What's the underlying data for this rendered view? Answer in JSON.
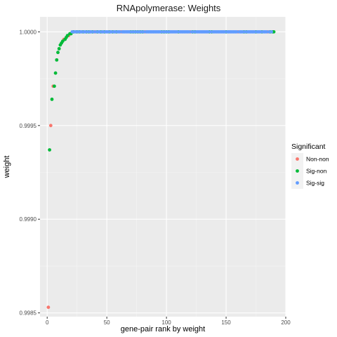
{
  "chart_data": {
    "type": "scatter",
    "title": "RNApolymerase: Weights",
    "xlabel": "gene-pair rank by weight",
    "ylabel": "weight",
    "xlim": [
      -6,
      200
    ],
    "ylim": [
      0.99848,
      1.00008
    ],
    "x_ticks": [
      0,
      50,
      100,
      150,
      200
    ],
    "x_tick_labels": [
      "0",
      "50",
      "100",
      "150",
      "200"
    ],
    "y_ticks": [
      0.9985,
      0.999,
      0.9995,
      1.0
    ],
    "y_tick_labels": [
      "0.9985",
      "0.9990",
      "0.9995",
      "1.0000"
    ],
    "grid": true,
    "legend": {
      "title": "Significant",
      "position": "right",
      "entries": [
        {
          "name": "Non-non",
          "color": "#F8766D"
        },
        {
          "name": "Sig-non",
          "color": "#00BA38"
        },
        {
          "name": "Sig-sig",
          "color": "#619CFF"
        }
      ]
    },
    "series": [
      {
        "name": "Non-non",
        "color": "#F8766D",
        "points": [
          [
            1,
            0.99853
          ],
          [
            3,
            0.9995
          ],
          [
            5,
            0.99971
          ],
          [
            14,
            0.99996
          ],
          [
            18,
            0.99998
          ],
          [
            40,
            1.0
          ],
          [
            62,
            1.0
          ],
          [
            82,
            1.0
          ],
          [
            120,
            1.0
          ],
          [
            160,
            1.0
          ],
          [
            185,
            1.0
          ]
        ]
      },
      {
        "name": "Sig-non",
        "color": "#00BA38",
        "points": [
          [
            2,
            0.99937
          ],
          [
            4,
            0.99964
          ],
          [
            6,
            0.99971
          ],
          [
            7,
            0.99978
          ],
          [
            8,
            0.99985
          ],
          [
            9,
            0.99989
          ],
          [
            10,
            0.99991
          ],
          [
            11,
            0.99993
          ],
          [
            12,
            0.99994
          ],
          [
            13,
            0.99995
          ],
          [
            15,
            0.99996
          ],
          [
            16,
            0.99997
          ],
          [
            17,
            0.99998
          ],
          [
            19,
            0.99999
          ],
          [
            20,
            0.99999
          ],
          [
            22,
            1.0
          ],
          [
            25,
            1.0
          ],
          [
            27,
            1.0
          ],
          [
            30,
            1.0
          ],
          [
            33,
            1.0
          ],
          [
            35,
            1.0
          ],
          [
            38,
            1.0
          ],
          [
            42,
            1.0
          ],
          [
            45,
            1.0
          ],
          [
            48,
            1.0
          ],
          [
            52,
            1.0
          ],
          [
            55,
            1.0
          ],
          [
            58,
            1.0
          ],
          [
            70,
            1.0
          ],
          [
            72,
            1.0
          ],
          [
            74,
            1.0
          ],
          [
            76,
            1.0
          ],
          [
            78,
            1.0
          ],
          [
            80,
            1.0
          ],
          [
            96,
            1.0
          ],
          [
            98,
            1.0
          ],
          [
            100,
            1.0
          ],
          [
            102,
            1.0
          ],
          [
            110,
            1.0
          ],
          [
            122,
            1.0
          ],
          [
            124,
            1.0
          ],
          [
            136,
            1.0
          ],
          [
            138,
            1.0
          ],
          [
            150,
            1.0
          ],
          [
            165,
            1.0
          ],
          [
            167,
            1.0
          ],
          [
            175,
            1.0
          ],
          [
            180,
            1.0
          ],
          [
            187,
            1.0
          ],
          [
            189,
            1.0
          ],
          [
            190,
            1.0
          ]
        ]
      },
      {
        "name": "Sig-sig",
        "color": "#619CFF",
        "points": [
          [
            21,
            1.0
          ],
          [
            23,
            1.0
          ],
          [
            24,
            1.0
          ],
          [
            26,
            1.0
          ],
          [
            28,
            1.0
          ],
          [
            29,
            1.0
          ],
          [
            31,
            1.0
          ],
          [
            32,
            1.0
          ],
          [
            34,
            1.0
          ],
          [
            36,
            1.0
          ],
          [
            37,
            1.0
          ],
          [
            39,
            1.0
          ],
          [
            41,
            1.0
          ],
          [
            43,
            1.0
          ],
          [
            44,
            1.0
          ],
          [
            46,
            1.0
          ],
          [
            47,
            1.0
          ],
          [
            49,
            1.0
          ],
          [
            50,
            1.0
          ],
          [
            51,
            1.0
          ],
          [
            53,
            1.0
          ],
          [
            54,
            1.0
          ],
          [
            56,
            1.0
          ],
          [
            57,
            1.0
          ],
          [
            59,
            1.0
          ],
          [
            60,
            1.0
          ],
          [
            61,
            1.0
          ],
          [
            63,
            1.0
          ],
          [
            64,
            1.0
          ],
          [
            65,
            1.0
          ],
          [
            66,
            1.0
          ],
          [
            67,
            1.0
          ],
          [
            68,
            1.0
          ],
          [
            69,
            1.0
          ],
          [
            71,
            1.0
          ],
          [
            73,
            1.0
          ],
          [
            75,
            1.0
          ],
          [
            77,
            1.0
          ],
          [
            79,
            1.0
          ],
          [
            81,
            1.0
          ],
          [
            83,
            1.0
          ],
          [
            84,
            1.0
          ],
          [
            85,
            1.0
          ],
          [
            86,
            1.0
          ],
          [
            87,
            1.0
          ],
          [
            88,
            1.0
          ],
          [
            89,
            1.0
          ],
          [
            90,
            1.0
          ],
          [
            91,
            1.0
          ],
          [
            92,
            1.0
          ],
          [
            93,
            1.0
          ],
          [
            94,
            1.0
          ],
          [
            95,
            1.0
          ],
          [
            97,
            1.0
          ],
          [
            99,
            1.0
          ],
          [
            101,
            1.0
          ],
          [
            103,
            1.0
          ],
          [
            104,
            1.0
          ],
          [
            105,
            1.0
          ],
          [
            106,
            1.0
          ],
          [
            107,
            1.0
          ],
          [
            108,
            1.0
          ],
          [
            109,
            1.0
          ],
          [
            111,
            1.0
          ],
          [
            112,
            1.0
          ],
          [
            113,
            1.0
          ],
          [
            114,
            1.0
          ],
          [
            115,
            1.0
          ],
          [
            116,
            1.0
          ],
          [
            117,
            1.0
          ],
          [
            118,
            1.0
          ],
          [
            119,
            1.0
          ],
          [
            121,
            1.0
          ],
          [
            123,
            1.0
          ],
          [
            125,
            1.0
          ],
          [
            126,
            1.0
          ],
          [
            127,
            1.0
          ],
          [
            128,
            1.0
          ],
          [
            129,
            1.0
          ],
          [
            130,
            1.0
          ],
          [
            131,
            1.0
          ],
          [
            132,
            1.0
          ],
          [
            133,
            1.0
          ],
          [
            134,
            1.0
          ],
          [
            135,
            1.0
          ],
          [
            137,
            1.0
          ],
          [
            139,
            1.0
          ],
          [
            140,
            1.0
          ],
          [
            141,
            1.0
          ],
          [
            142,
            1.0
          ],
          [
            143,
            1.0
          ],
          [
            144,
            1.0
          ],
          [
            145,
            1.0
          ],
          [
            146,
            1.0
          ],
          [
            147,
            1.0
          ],
          [
            148,
            1.0
          ],
          [
            149,
            1.0
          ],
          [
            151,
            1.0
          ],
          [
            152,
            1.0
          ],
          [
            153,
            1.0
          ],
          [
            154,
            1.0
          ],
          [
            155,
            1.0
          ],
          [
            156,
            1.0
          ],
          [
            157,
            1.0
          ],
          [
            158,
            1.0
          ],
          [
            159,
            1.0
          ],
          [
            161,
            1.0
          ],
          [
            162,
            1.0
          ],
          [
            163,
            1.0
          ],
          [
            164,
            1.0
          ],
          [
            166,
            1.0
          ],
          [
            168,
            1.0
          ],
          [
            169,
            1.0
          ],
          [
            170,
            1.0
          ],
          [
            171,
            1.0
          ],
          [
            172,
            1.0
          ],
          [
            173,
            1.0
          ],
          [
            174,
            1.0
          ],
          [
            176,
            1.0
          ],
          [
            177,
            1.0
          ],
          [
            178,
            1.0
          ],
          [
            179,
            1.0
          ],
          [
            181,
            1.0
          ],
          [
            182,
            1.0
          ],
          [
            183,
            1.0
          ],
          [
            184,
            1.0
          ],
          [
            186,
            1.0
          ],
          [
            188,
            1.0
          ]
        ]
      }
    ]
  }
}
